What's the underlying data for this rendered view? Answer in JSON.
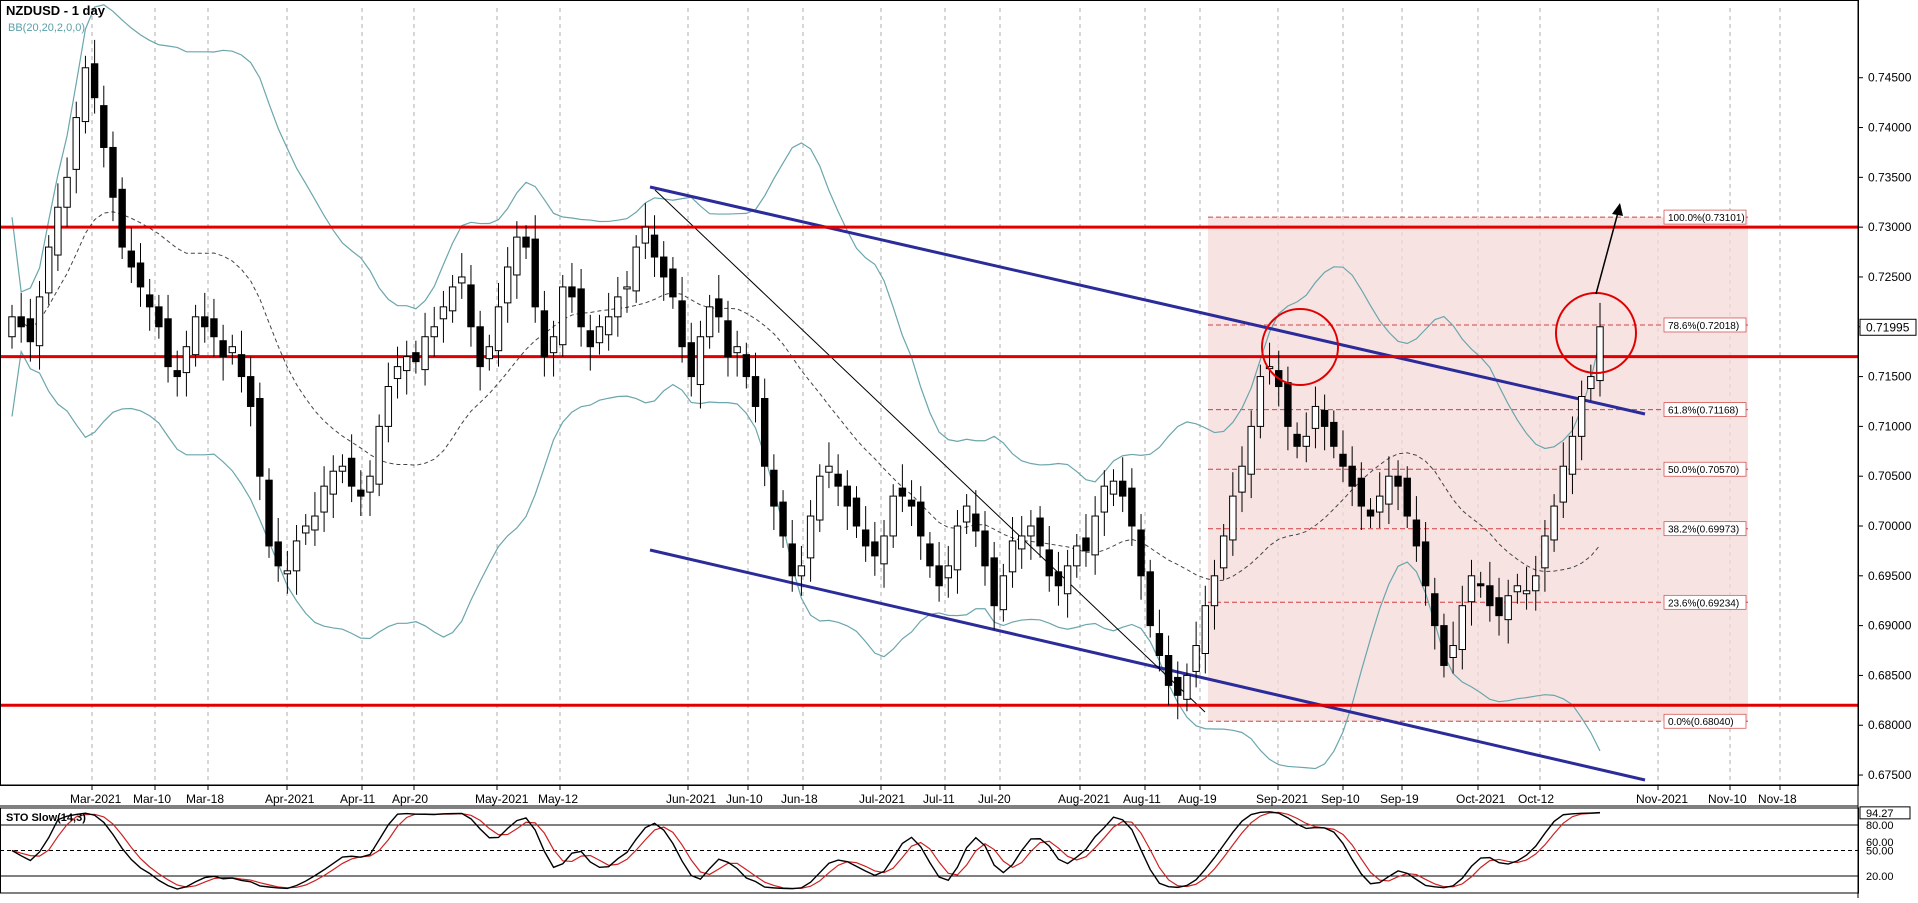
{
  "header": {
    "symbol_title": "NZDUSD - 1 day",
    "indicator_label": "BB(20,20,2,0,0)"
  },
  "stochastic": {
    "title": "STO Slow(14,3)",
    "labels": [
      "94.27",
      "80.00",
      "60.00",
      "50.00",
      "20.00"
    ]
  },
  "colors": {
    "bollinger": "#6aa6ac",
    "trend_channel": "#2b2b9a",
    "horizontal_levels": "#e00000",
    "fib_zone": "#f6d9d9",
    "fib_lines": "#d04040",
    "candle_up": "#ffffff",
    "candle_down": "#000000",
    "sto_k": "#000000",
    "sto_d": "#cc2222"
  },
  "chart_data": {
    "type": "candlestick",
    "ylim": [
      0.674,
      0.752
    ],
    "y_ticks": [
      "0.74500",
      "0.74000",
      "0.73500",
      "0.73000",
      "0.72500",
      "0.72000",
      "0.71500",
      "0.71000",
      "0.70500",
      "0.70000",
      "0.69500",
      "0.69000",
      "0.68500",
      "0.68000",
      "0.67500"
    ],
    "current_price": "0.71995",
    "x_labels": [
      "Mar-2021",
      "Mar-10",
      "Mar-18",
      "Apr-2021",
      "Apr-11",
      "Apr-20",
      "May-2021",
      "May-12",
      "Jun-2021",
      "Jun-10",
      "Jun-18",
      "Jul-2021",
      "Jul-11",
      "Jul-20",
      "Aug-2021",
      "Aug-11",
      "Aug-19",
      "Sep-2021",
      "Sep-10",
      "Sep-19",
      "Oct-2021",
      "Oct-12",
      "Nov-2021",
      "Nov-10",
      "Nov-18"
    ],
    "horizontal_levels": [
      0.73,
      0.717,
      0.682
    ],
    "fibonacci": [
      {
        "label": "100.0%(0.73101)",
        "value": 0.73101
      },
      {
        "label": "78.6%(0.72018)",
        "value": 0.72018
      },
      {
        "label": "61.8%(0.71168)",
        "value": 0.71168
      },
      {
        "label": "50.0%(0.70570)",
        "value": 0.7057
      },
      {
        "label": "38.2%(0.69973)",
        "value": 0.69973
      },
      {
        "label": "23.6%(0.69234)",
        "value": 0.69234
      },
      {
        "label": "0.0%(0.68040)",
        "value": 0.6804
      }
    ],
    "closes": [
      0.721,
      0.72,
      0.7185,
      0.723,
      0.728,
      0.732,
      0.735,
      0.741,
      0.746,
      0.743,
      0.738,
      0.733,
      0.728,
      0.726,
      0.724,
      0.722,
      0.72,
      0.716,
      0.715,
      0.718,
      0.721,
      0.72,
      0.719,
      0.717,
      0.718,
      0.715,
      0.712,
      0.705,
      0.698,
      0.696,
      0.6955,
      0.6985,
      0.7,
      0.701,
      0.704,
      0.7055,
      0.706,
      0.704,
      0.703,
      0.705,
      0.71,
      0.714,
      0.716,
      0.717,
      0.7165,
      0.719,
      0.72,
      0.722,
      0.724,
      0.725,
      0.72,
      0.716,
      0.718,
      0.722,
      0.726,
      0.729,
      0.728,
      0.722,
      0.717,
      0.719,
      0.724,
      0.723,
      0.72,
      0.718,
      0.72,
      0.721,
      0.723,
      0.724,
      0.728,
      0.73,
      0.727,
      0.725,
      0.723,
      0.718,
      0.715,
      0.719,
      0.722,
      0.721,
      0.717,
      0.718,
      0.715,
      0.712,
      0.706,
      0.702,
      0.699,
      0.695,
      0.696,
      0.701,
      0.705,
      0.706,
      0.704,
      0.702,
      0.7,
      0.698,
      0.697,
      0.699,
      0.703,
      0.703,
      0.702,
      0.699,
      0.696,
      0.694,
      0.696,
      0.7,
      0.702,
      0.6995,
      0.696,
      0.692,
      0.695,
      0.6985,
      0.699,
      0.7,
      0.698,
      0.695,
      0.694,
      0.696,
      0.698,
      0.6975,
      0.701,
      0.704,
      0.7045,
      0.703,
      0.7,
      0.695,
      0.69,
      0.687,
      0.684,
      0.683,
      0.685,
      0.688,
      0.692,
      0.695,
      0.699,
      0.703,
      0.706,
      0.71,
      0.715,
      0.716,
      0.714,
      0.71,
      0.708,
      0.709,
      0.712,
      0.71,
      0.708,
      0.706,
      0.704,
      0.702,
      0.701,
      0.703,
      0.705,
      0.704,
      0.701,
      0.698,
      0.694,
      0.69,
      0.686,
      0.688,
      0.692,
      0.695,
      0.694,
      0.692,
      0.691,
      0.693,
      0.694,
      0.6935,
      0.695,
      0.699,
      0.702,
      0.706,
      0.709,
      0.713,
      0.715,
      0.72
    ]
  }
}
